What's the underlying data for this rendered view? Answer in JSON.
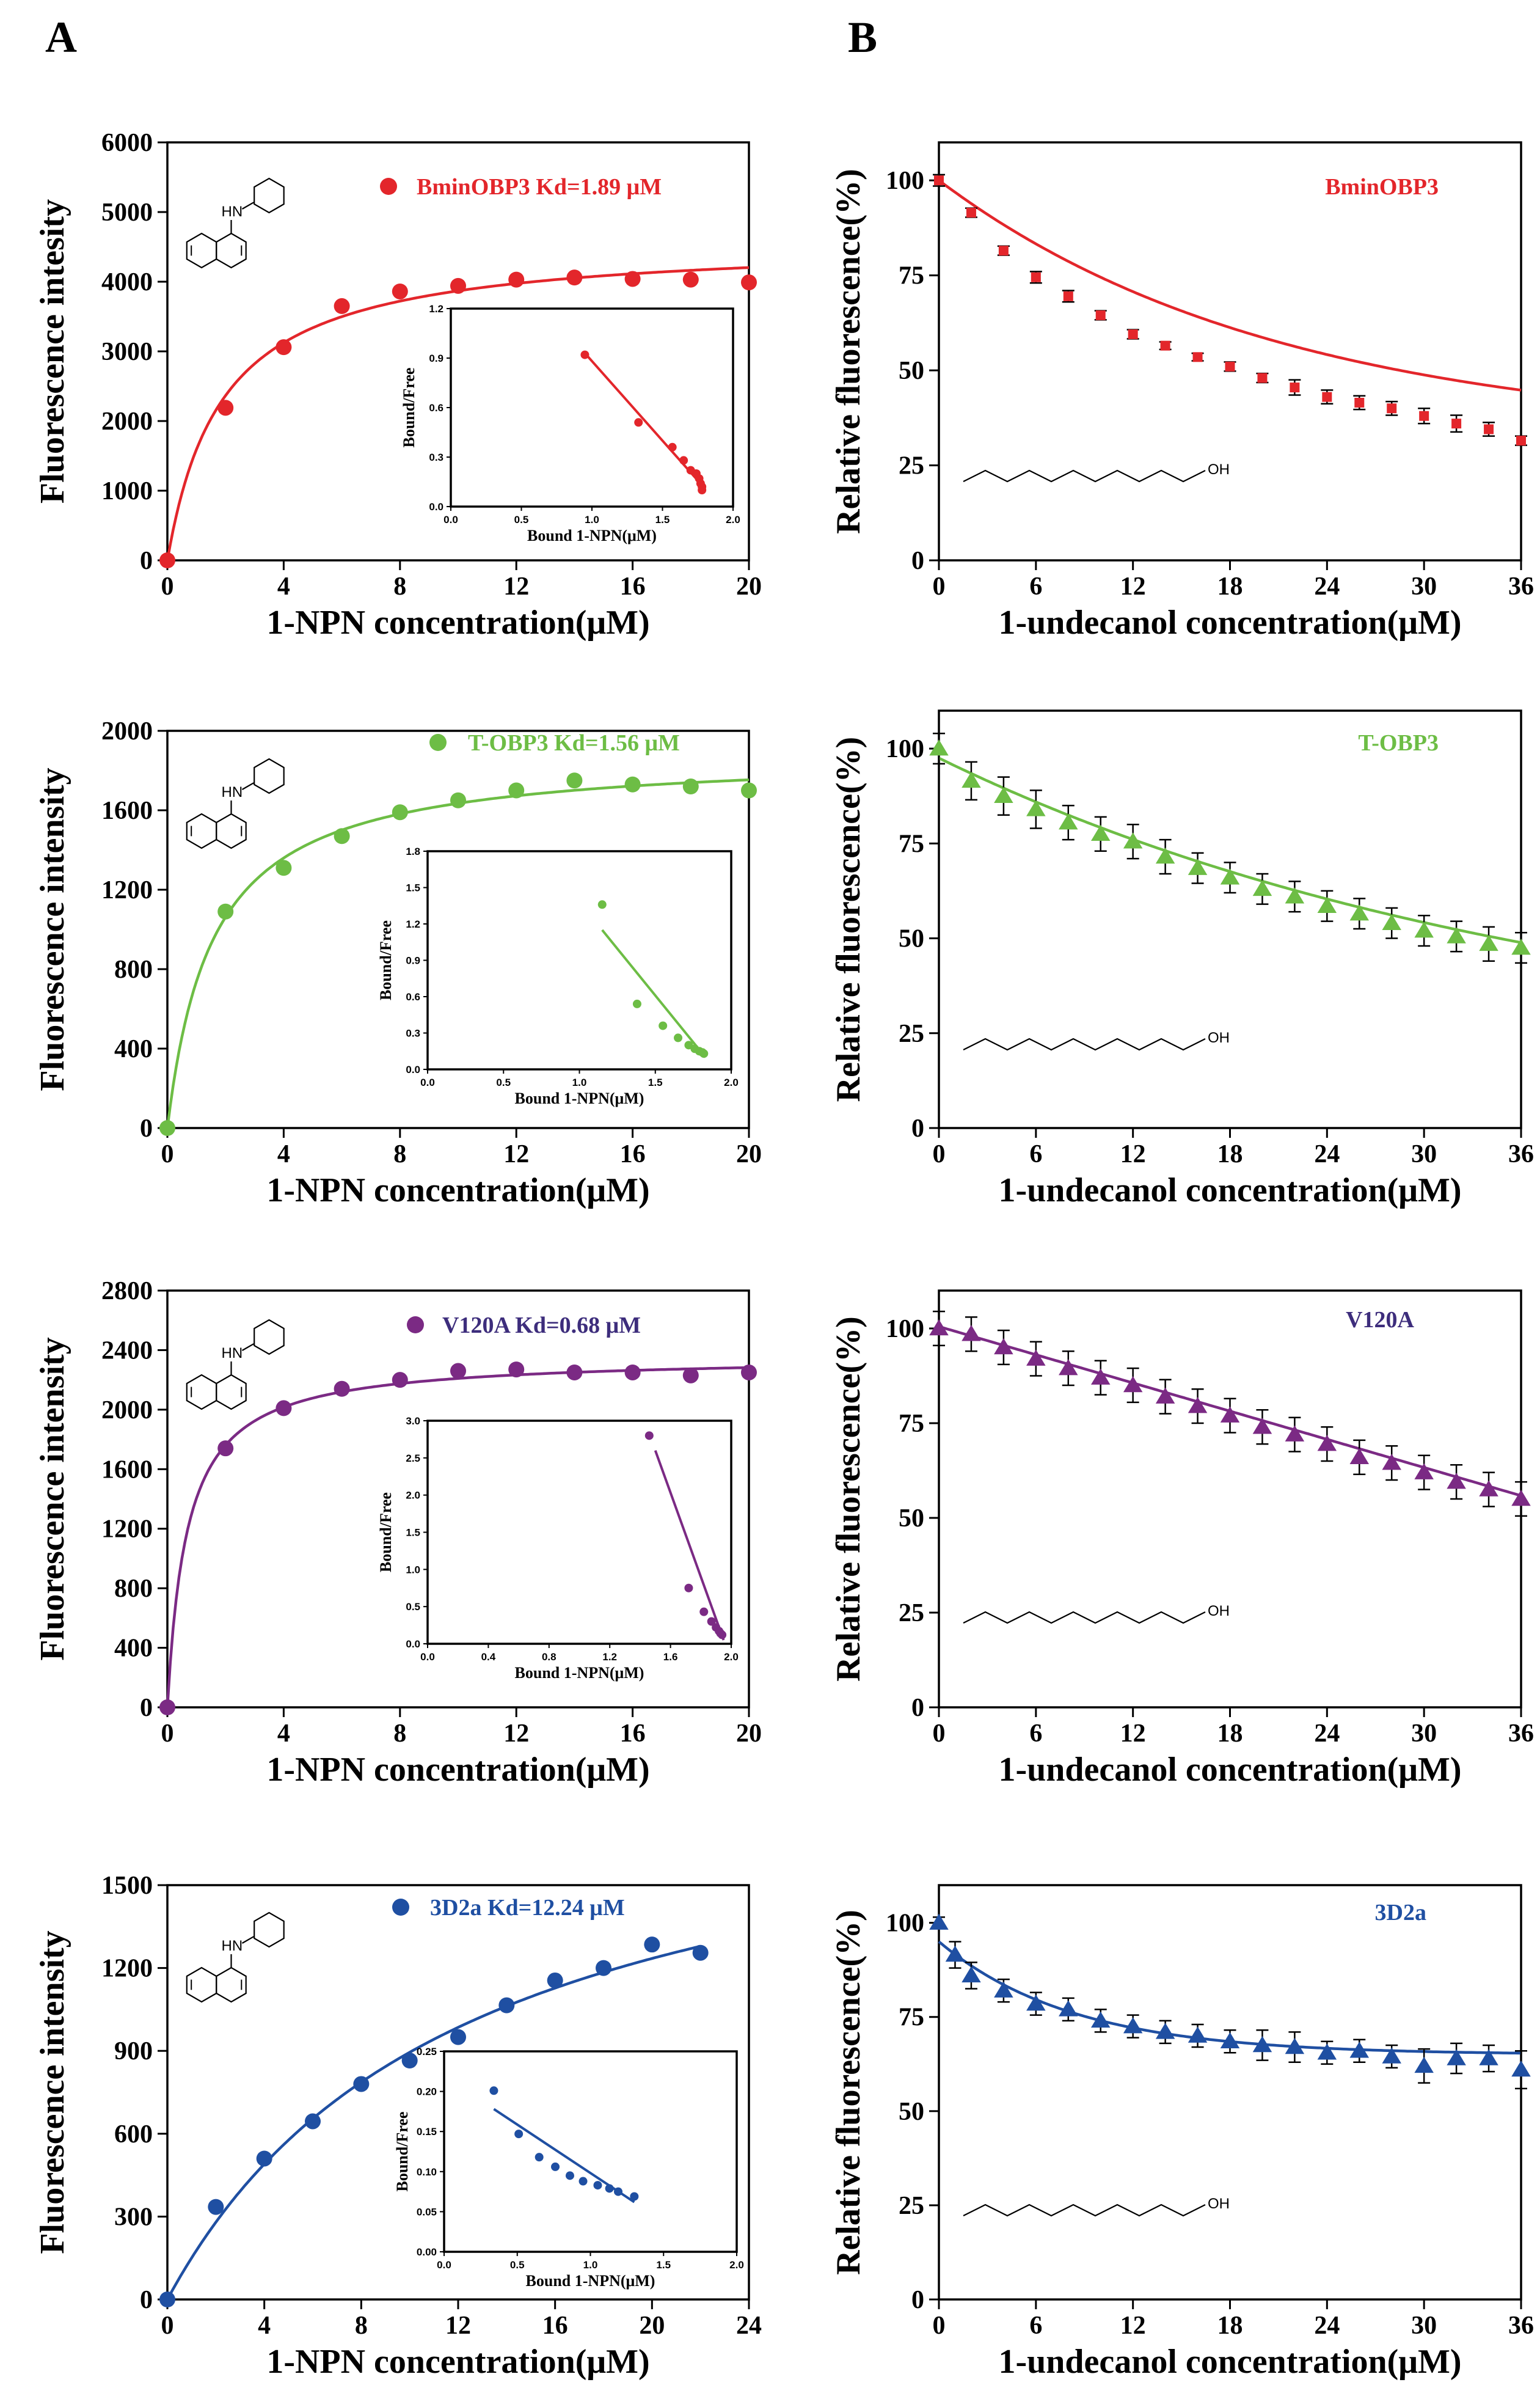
{
  "panel_labels": [
    "A",
    "B"
  ],
  "molecule_labels": {
    "npn_nh": "HN",
    "undecanol_oh": "OH"
  },
  "chart_data": [
    {
      "id": "A1",
      "type": "scatter",
      "fit": "saturation",
      "color": "#e3262b",
      "legend": "BminOBP3  Kd=1.89 μM",
      "xlabel": "1-NPN concentration(μM)",
      "ylabel": "Fluorescence intesity",
      "xlim": [
        0,
        20
      ],
      "xticks": [
        0,
        4,
        8,
        12,
        16,
        20
      ],
      "ylim": [
        0,
        6000
      ],
      "yticks": [
        0,
        1000,
        2000,
        3000,
        4000,
        5000,
        6000
      ],
      "x": [
        0,
        2,
        4,
        6,
        8,
        10,
        12,
        14,
        16,
        18,
        20
      ],
      "y": [
        0,
        2190,
        3060,
        3650,
        3860,
        3940,
        4030,
        4060,
        4040,
        4030,
        3990
      ],
      "fit_params": {
        "Bmax": 4600,
        "Kd": 1.89
      },
      "inset": {
        "xlabel": "Bound 1-NPN(μM)",
        "ylabel": "Bound/Free",
        "xlim": [
          0,
          2
        ],
        "xticks": [
          0.0,
          0.5,
          1.0,
          1.5,
          2.0
        ],
        "ylim": [
          0,
          1.2
        ],
        "yticks": [
          0.0,
          0.3,
          0.6,
          0.9,
          1.2
        ],
        "x": [
          0.95,
          1.33,
          1.57,
          1.65,
          1.7,
          1.74,
          1.76,
          1.77,
          1.78,
          1.78
        ],
        "y": [
          0.92,
          0.51,
          0.36,
          0.28,
          0.22,
          0.2,
          0.17,
          0.14,
          0.12,
          0.1
        ],
        "line": [
          [
            0.95,
            0.93
          ],
          [
            1.8,
            0.11
          ]
        ]
      }
    },
    {
      "id": "A2",
      "type": "scatter",
      "fit": "saturation",
      "color": "#6dbd45",
      "legend": "T-OBP3 Kd=1.56 μM",
      "xlabel": "1-NPN concentration(μM)",
      "ylabel": "Fluorescence intensity",
      "xlim": [
        0,
        20
      ],
      "xticks": [
        0,
        4,
        8,
        12,
        16,
        20
      ],
      "ylim": [
        0,
        2000
      ],
      "yticks": [
        0,
        400,
        800,
        1200,
        1600,
        2000
      ],
      "x": [
        0,
        2,
        4,
        6,
        8,
        10,
        12,
        14,
        16,
        18,
        20
      ],
      "y": [
        0,
        1090,
        1310,
        1470,
        1590,
        1650,
        1700,
        1750,
        1730,
        1720,
        1700
      ],
      "fit_params": {
        "Bmax": 1890,
        "Kd": 1.56
      },
      "inset": {
        "xlabel": "Bound 1-NPN(μM)",
        "ylabel": "Bound/Free",
        "xlim": [
          0,
          2
        ],
        "xticks": [
          0.0,
          0.5,
          1.0,
          1.5,
          2.0
        ],
        "ylim": [
          0,
          1.8
        ],
        "yticks": [
          0.0,
          0.3,
          0.6,
          0.9,
          1.2,
          1.5,
          1.8
        ],
        "x": [
          1.15,
          1.38,
          1.55,
          1.65,
          1.72,
          1.76,
          1.79,
          1.81,
          1.82
        ],
        "y": [
          1.36,
          0.54,
          0.36,
          0.26,
          0.2,
          0.17,
          0.15,
          0.14,
          0.13
        ],
        "line": [
          [
            1.15,
            1.15
          ],
          [
            1.83,
            0.1
          ]
        ]
      }
    },
    {
      "id": "A3",
      "type": "scatter",
      "fit": "saturation",
      "color": "#7b2a84",
      "legend_color": "#3d2d7c",
      "legend": "V120A  Kd=0.68 μM",
      "xlabel": "1-NPN concentration(μM)",
      "ylabel": "Fluorescence intensity",
      "xlim": [
        0,
        20
      ],
      "xticks": [
        0,
        4,
        8,
        12,
        16,
        20
      ],
      "ylim": [
        0,
        2800
      ],
      "yticks": [
        0,
        400,
        800,
        1200,
        1600,
        2000,
        2400,
        2800
      ],
      "x": [
        0,
        2,
        4,
        6,
        8,
        10,
        12,
        14,
        16,
        18,
        20
      ],
      "y": [
        0,
        1740,
        2010,
        2140,
        2200,
        2260,
        2270,
        2250,
        2250,
        2230,
        2250
      ],
      "fit_params": {
        "Bmax": 2360,
        "Kd": 0.68
      },
      "inset": {
        "xlabel": "Bound 1-NPN(μM)",
        "ylabel": "Bound/Free",
        "xlim": [
          0,
          2
        ],
        "xticks": [
          0.0,
          0.4,
          0.8,
          1.2,
          1.6,
          2.0
        ],
        "ylim": [
          0,
          3
        ],
        "yticks": [
          0.0,
          0.5,
          1.0,
          1.5,
          2.0,
          2.5,
          3.0
        ],
        "x": [
          1.46,
          1.72,
          1.82,
          1.87,
          1.9,
          1.92,
          1.93,
          1.94
        ],
        "y": [
          2.8,
          0.75,
          0.43,
          0.3,
          0.22,
          0.17,
          0.14,
          0.12
        ],
        "line": [
          [
            1.5,
            2.6
          ],
          [
            1.95,
            0.05
          ]
        ]
      }
    },
    {
      "id": "A4",
      "type": "scatter",
      "fit": "saturation",
      "color": "#1f4fa2",
      "legend": "3D2a  Kd=12.24 μM",
      "xlabel": "1-NPN concentration(μM)",
      "ylabel": "Fluorescence intensity",
      "xlim": [
        0,
        24
      ],
      "xticks": [
        0,
        4,
        8,
        12,
        16,
        20,
        24
      ],
      "ylim": [
        0,
        1500
      ],
      "yticks": [
        0,
        300,
        600,
        900,
        1200,
        1500
      ],
      "x": [
        0,
        2,
        4,
        6,
        8,
        10,
        12,
        14,
        16,
        18,
        20,
        22
      ],
      "y": [
        0,
        335,
        510,
        645,
        780,
        865,
        950,
        1065,
        1155,
        1200,
        1285,
        1255
      ],
      "fit_params": {
        "Bmax": 1990,
        "Kd": 12.24
      },
      "inset": {
        "xlabel": "Bound 1-NPN(μM)",
        "ylabel": "Bound/Free",
        "xlim": [
          0,
          2
        ],
        "xticks": [
          0.0,
          0.5,
          1.0,
          1.5,
          2.0
        ],
        "ylim": [
          0,
          0.25
        ],
        "yticks": [
          0.0,
          0.05,
          0.1,
          0.15,
          0.2,
          0.25
        ],
        "x": [
          0.34,
          0.51,
          0.65,
          0.76,
          0.86,
          0.95,
          1.05,
          1.13,
          1.19,
          1.3
        ],
        "y": [
          0.201,
          0.147,
          0.118,
          0.106,
          0.095,
          0.088,
          0.083,
          0.079,
          0.075,
          0.069
        ],
        "line": [
          [
            0.34,
            0.178
          ],
          [
            1.3,
            0.062
          ]
        ]
      }
    },
    {
      "id": "B1",
      "type": "line",
      "color": "#e3262b",
      "marker": "square",
      "legend": "BminOBP3",
      "xlabel": "1-undecanol concentration(μM)",
      "ylabel": "Relative fluorescence(%)",
      "xlim": [
        0,
        36
      ],
      "xticks": [
        0,
        6,
        12,
        18,
        24,
        30,
        36
      ],
      "ylim": [
        0,
        110
      ],
      "yticks": [
        0,
        25,
        50,
        75,
        100
      ],
      "x": [
        0,
        2,
        4,
        6,
        8,
        10,
        12,
        14,
        16,
        18,
        20,
        22,
        24,
        26,
        28,
        30,
        32,
        34,
        36
      ],
      "y": [
        100,
        91.5,
        81.5,
        74.5,
        69.5,
        64.5,
        59.5,
        56.5,
        53.5,
        51,
        48,
        45.5,
        43,
        41.5,
        40,
        38,
        36,
        34.5,
        31.5
      ],
      "err": [
        1.5,
        1.2,
        1.2,
        1.5,
        1.5,
        1.2,
        1.2,
        1,
        1,
        1.2,
        1.2,
        2,
        1.8,
        1.8,
        1.8,
        2,
        2.2,
        1.8,
        1.2
      ],
      "fit_curve": {
        "model": "exp",
        "a": 67.4,
        "k": 0.0475,
        "c": 32.6
      }
    },
    {
      "id": "B2",
      "type": "line",
      "color": "#6dbd45",
      "marker": "triangle",
      "legend": "T-OBP3",
      "xlabel": "1-undecanol concentration(μM)",
      "ylabel": "Relative fluorescence(%)",
      "xlim": [
        0,
        36
      ],
      "xticks": [
        0,
        6,
        12,
        18,
        24,
        30,
        36
      ],
      "ylim": [
        0,
        110
      ],
      "yticks": [
        0,
        25,
        50,
        75,
        100
      ],
      "x": [
        0,
        2,
        4,
        6,
        8,
        10,
        12,
        14,
        16,
        18,
        20,
        22,
        24,
        26,
        28,
        30,
        32,
        34,
        36
      ],
      "y": [
        100,
        91.5,
        87.5,
        84,
        80.5,
        77.5,
        75.5,
        71.5,
        68.5,
        66,
        63,
        61,
        58.5,
        56.5,
        54,
        52,
        50.5,
        48.5,
        47.5
      ],
      "err": [
        4,
        5,
        5,
        5,
        4.5,
        4.5,
        4.5,
        4.5,
        4,
        4,
        4,
        4,
        4,
        4,
        4,
        4,
        4,
        4.5,
        4
      ],
      "fit_curve": {
        "model": "exp",
        "a": 80,
        "k": 0.026,
        "c": 17.5
      }
    },
    {
      "id": "B3",
      "type": "line",
      "color": "#7b2a84",
      "marker": "triangle",
      "legend_color": "#3d2d7c",
      "legend": "V120A",
      "xlabel": "1-undecanol concentration(μM)",
      "ylabel": "Relative fluorescence(%)",
      "xlim": [
        0,
        36
      ],
      "xticks": [
        0,
        6,
        12,
        18,
        24,
        30,
        36
      ],
      "ylim": [
        0,
        110
      ],
      "yticks": [
        0,
        25,
        50,
        75,
        100
      ],
      "x": [
        0,
        2,
        4,
        6,
        8,
        10,
        12,
        14,
        16,
        18,
        20,
        22,
        24,
        26,
        28,
        30,
        32,
        34,
        36
      ],
      "y": [
        100,
        98.5,
        95,
        92,
        89.5,
        87,
        85,
        82,
        79.5,
        77,
        74,
        72,
        69.5,
        66,
        64.5,
        62,
        59.5,
        57.5,
        55
      ],
      "err": [
        4.5,
        4.5,
        4.5,
        4.5,
        4.5,
        4.5,
        4.5,
        4.5,
        4.5,
        4.5,
        4.5,
        4.5,
        4.5,
        4.5,
        4.5,
        4.5,
        4.5,
        4.5,
        4.5
      ],
      "fit_curve": {
        "model": "linear",
        "m": -1.24,
        "b": 100.5
      }
    },
    {
      "id": "B4",
      "type": "line",
      "color": "#1f4fa2",
      "marker": "triangle",
      "legend": "3D2a",
      "xlabel": "1-undecanol concentration(μM)",
      "ylabel": "Relative fluorescence(%)",
      "xlim": [
        0,
        36
      ],
      "xticks": [
        0,
        6,
        12,
        18,
        24,
        30,
        36
      ],
      "ylim": [
        0,
        110
      ],
      "yticks": [
        0,
        25,
        50,
        75,
        100
      ],
      "x": [
        0,
        1,
        2,
        4,
        6,
        8,
        10,
        12,
        14,
        16,
        18,
        20,
        22,
        24,
        26,
        28,
        30,
        32,
        34,
        36
      ],
      "y": [
        100,
        91.5,
        86,
        82,
        78.5,
        77,
        74,
        72.5,
        71,
        70,
        68.5,
        67.5,
        67,
        65.5,
        66,
        64.5,
        62,
        64,
        64,
        61
      ],
      "err": [
        1.5,
        3.5,
        3.5,
        3,
        3,
        3,
        3,
        3,
        3,
        3,
        3,
        4,
        4,
        3,
        3,
        3,
        4.5,
        4,
        3.5,
        5
      ],
      "fit_curve": {
        "model": "exp",
        "a": 30,
        "k": 0.12,
        "c": 65
      }
    }
  ]
}
